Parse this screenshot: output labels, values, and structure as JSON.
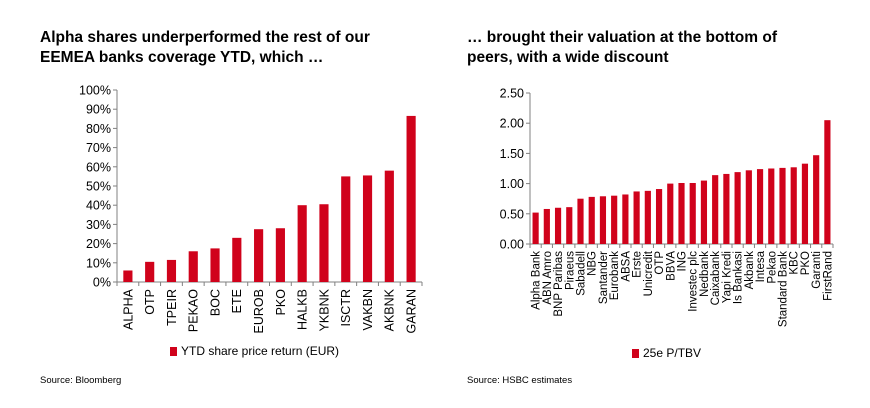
{
  "chart_data": [
    {
      "type": "bar",
      "title_lines": [
        "Alpha shares underperformed the rest of our",
        "EEMEA banks coverage YTD, which …"
      ],
      "categories": [
        "ALPHA",
        "OTP",
        "TPEIR",
        "PEKAO",
        "BOC",
        "ETE",
        "EUROB",
        "PKO",
        "HALKB",
        "YKBNK",
        "ISCTR",
        "VAKBN",
        "AKBNK",
        "GARAN"
      ],
      "series": [
        {
          "name": "YTD share price return (EUR)",
          "values": [
            0.06,
            0.105,
            0.115,
            0.16,
            0.175,
            0.23,
            0.275,
            0.28,
            0.4,
            0.405,
            0.55,
            0.555,
            0.58,
            0.865
          ]
        }
      ],
      "ylim": [
        0,
        1.0
      ],
      "yticks": [
        "0%",
        "10%",
        "20%",
        "30%",
        "40%",
        "50%",
        "60%",
        "70%",
        "80%",
        "90%",
        "100%"
      ],
      "legend_position": "bottom",
      "grid": false,
      "bar_color": "#d0021b",
      "source": "Source: Bloomberg"
    },
    {
      "type": "bar",
      "title_lines": [
        "… brought their valuation at the bottom of",
        "peers, with a wide discount"
      ],
      "categories": [
        "Alpha Bank",
        "ABN Amro",
        "BNP Paribas",
        "Piraeus",
        "Sabadell",
        "NBG",
        "Santander",
        "Eurobank",
        "ABSA",
        "Erste",
        "Unicredit",
        "OTP",
        "BBVA",
        "ING",
        "Investec plc",
        "Nedbank",
        "Caixabank",
        "Yapi Kredi",
        "Is Bankasi",
        "Akbank",
        "Intesa",
        "Pekao",
        "Standard Bank",
        "KBC",
        "PKO",
        "Garanti",
        "FirstRand"
      ],
      "series": [
        {
          "name": "25e P/TBV",
          "values": [
            0.52,
            0.58,
            0.6,
            0.61,
            0.75,
            0.78,
            0.79,
            0.8,
            0.82,
            0.87,
            0.88,
            0.91,
            1.0,
            1.01,
            1.01,
            1.05,
            1.14,
            1.16,
            1.19,
            1.22,
            1.24,
            1.25,
            1.26,
            1.27,
            1.33,
            1.47,
            2.05
          ]
        }
      ],
      "ylim": [
        0,
        2.5
      ],
      "yticks": [
        "0.00",
        "0.50",
        "1.00",
        "1.50",
        "2.00",
        "2.50"
      ],
      "legend_position": "bottom",
      "grid": false,
      "bar_color": "#d0021b",
      "source": "Source: HSBC estimates"
    }
  ]
}
